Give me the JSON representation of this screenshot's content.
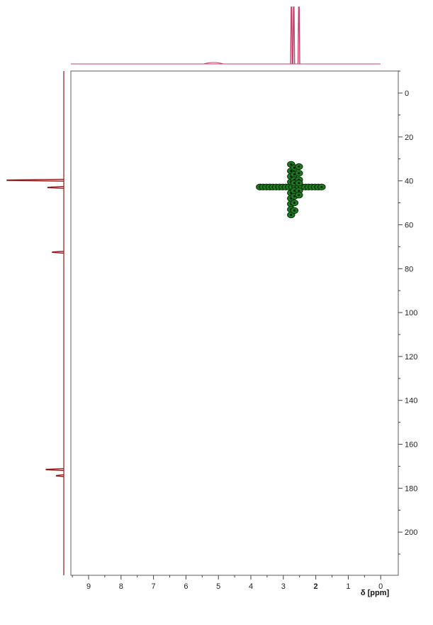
{
  "chart_data": {
    "type": "scatter",
    "title": "",
    "xlabel": "δ [ppm]",
    "ylabel": "",
    "xlim": [
      9.6,
      -0.5
    ],
    "ylim": [
      -10,
      222
    ],
    "x_axis_reversed": true,
    "x_ticks": [
      "9",
      "8",
      "7",
      "6",
      "5",
      "4",
      "3",
      "2",
      "1",
      "0"
    ],
    "y_ticks": [
      "0",
      "20",
      "40",
      "60",
      "80",
      "100",
      "120",
      "140",
      "160",
      "180",
      "200"
    ],
    "colors": {
      "frame": "#777777",
      "h_projection": "#c4416e",
      "c_projection": "#8b1a1a",
      "contour_fill": "#1e7a1e",
      "contour_edge": "#0b2e0b",
      "dot": "#041204"
    },
    "h_projection_peaks": [
      {
        "shift": 5.15,
        "intensity": 0.02
      },
      {
        "shift": 2.75,
        "intensity": 1.0
      },
      {
        "shift": 2.68,
        "intensity": 1.0
      },
      {
        "shift": 2.52,
        "intensity": 1.0
      }
    ],
    "c_projection_peaks": [
      {
        "shift": 39.7,
        "intensity": 1.0
      },
      {
        "shift": 43.0,
        "intensity": 0.28
      },
      {
        "shift": 72.5,
        "intensity": 0.2
      },
      {
        "shift": 171.5,
        "intensity": 0.31
      },
      {
        "shift": 174.3,
        "intensity": 0.13
      }
    ],
    "series": [
      {
        "values": [
          {
            "x": 3.72,
            "y": 42.8
          },
          {
            "x": 3.62,
            "y": 42.8
          },
          {
            "x": 3.52,
            "y": 42.8
          },
          {
            "x": 3.42,
            "y": 42.8
          },
          {
            "x": 3.32,
            "y": 42.8
          },
          {
            "x": 3.22,
            "y": 42.8
          },
          {
            "x": 3.12,
            "y": 42.8
          },
          {
            "x": 3.02,
            "y": 42.8
          },
          {
            "x": 2.92,
            "y": 42.8
          },
          {
            "x": 2.82,
            "y": 42.8
          },
          {
            "x": 2.72,
            "y": 42.8
          },
          {
            "x": 2.62,
            "y": 42.8
          },
          {
            "x": 2.52,
            "y": 42.8
          },
          {
            "x": 2.42,
            "y": 42.8
          },
          {
            "x": 2.32,
            "y": 42.8
          },
          {
            "x": 2.22,
            "y": 42.8
          },
          {
            "x": 2.12,
            "y": 42.8
          },
          {
            "x": 2.02,
            "y": 42.8
          },
          {
            "x": 1.92,
            "y": 42.8
          },
          {
            "x": 1.82,
            "y": 42.8
          },
          {
            "x": 2.76,
            "y": 32.5
          },
          {
            "x": 2.76,
            "y": 35.5
          },
          {
            "x": 2.76,
            "y": 38.0
          },
          {
            "x": 2.76,
            "y": 40.5
          },
          {
            "x": 2.76,
            "y": 45.5
          },
          {
            "x": 2.76,
            "y": 48.0
          },
          {
            "x": 2.76,
            "y": 50.5
          },
          {
            "x": 2.76,
            "y": 53.0
          },
          {
            "x": 2.76,
            "y": 55.5
          },
          {
            "x": 2.66,
            "y": 34.0
          },
          {
            "x": 2.66,
            "y": 37.0
          },
          {
            "x": 2.66,
            "y": 39.5
          },
          {
            "x": 2.66,
            "y": 41.0
          },
          {
            "x": 2.66,
            "y": 44.5
          },
          {
            "x": 2.66,
            "y": 47.0
          },
          {
            "x": 2.66,
            "y": 50.0
          },
          {
            "x": 2.66,
            "y": 53.5
          },
          {
            "x": 2.52,
            "y": 33.5
          },
          {
            "x": 2.52,
            "y": 36.5
          },
          {
            "x": 2.52,
            "y": 39.5
          },
          {
            "x": 2.52,
            "y": 41.0
          },
          {
            "x": 2.52,
            "y": 44.5
          },
          {
            "x": 2.52,
            "y": 46.5
          }
        ]
      }
    ]
  }
}
